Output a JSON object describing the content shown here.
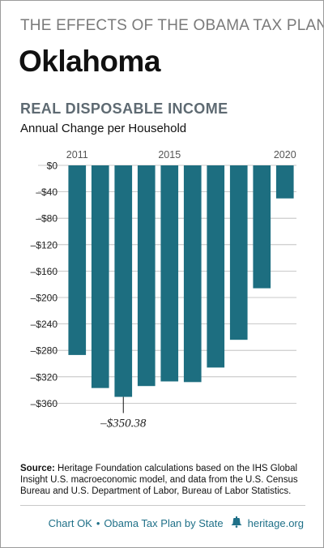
{
  "header": {
    "supertitle": "THE EFFECTS OF THE OBAMA TAX PLAN",
    "state": "Oklahoma"
  },
  "chart_data": {
    "type": "bar",
    "title": "REAL DISPOSABLE INCOME",
    "subtitle": "Annual Change per Household",
    "xlabel": "",
    "ylabel": "",
    "categories": [
      "2011",
      "2012",
      "2013",
      "2014",
      "2015",
      "2016",
      "2017",
      "2018",
      "2019",
      "2020"
    ],
    "x_tick_labels": [
      "2011",
      "2015",
      "2020"
    ],
    "values": [
      -287,
      -337,
      -350.38,
      -334,
      -327,
      -328,
      -306,
      -264,
      -186,
      -50
    ],
    "ylim": [
      -400,
      0
    ],
    "y_ticks": [
      0,
      -40,
      -80,
      -120,
      -160,
      -200,
      -240,
      -280,
      -320,
      -360
    ],
    "y_tick_labels": [
      "$0",
      "–$40",
      "–$80",
      "–$120",
      "–$160",
      "–$200",
      "–$240",
      "–$280",
      "–$320",
      "–$360"
    ],
    "grid": true,
    "bar_color": "#1d6e80",
    "annotation": {
      "category": "2013",
      "text": "–$350.38"
    }
  },
  "source": {
    "label": "Source:",
    "text": " Heritage Foundation calculations based on the IHS Global Insight U.S. macroeconomic model, and data from the U.S. Census Bureau and U.S. Department of Labor, Bureau of Labor Statistics."
  },
  "footer": {
    "chart_id": "Chart OK",
    "separator": "•",
    "series": "Obama Tax Plan by State",
    "site": "heritage.org",
    "logo_icon": "liberty-bell-icon"
  }
}
